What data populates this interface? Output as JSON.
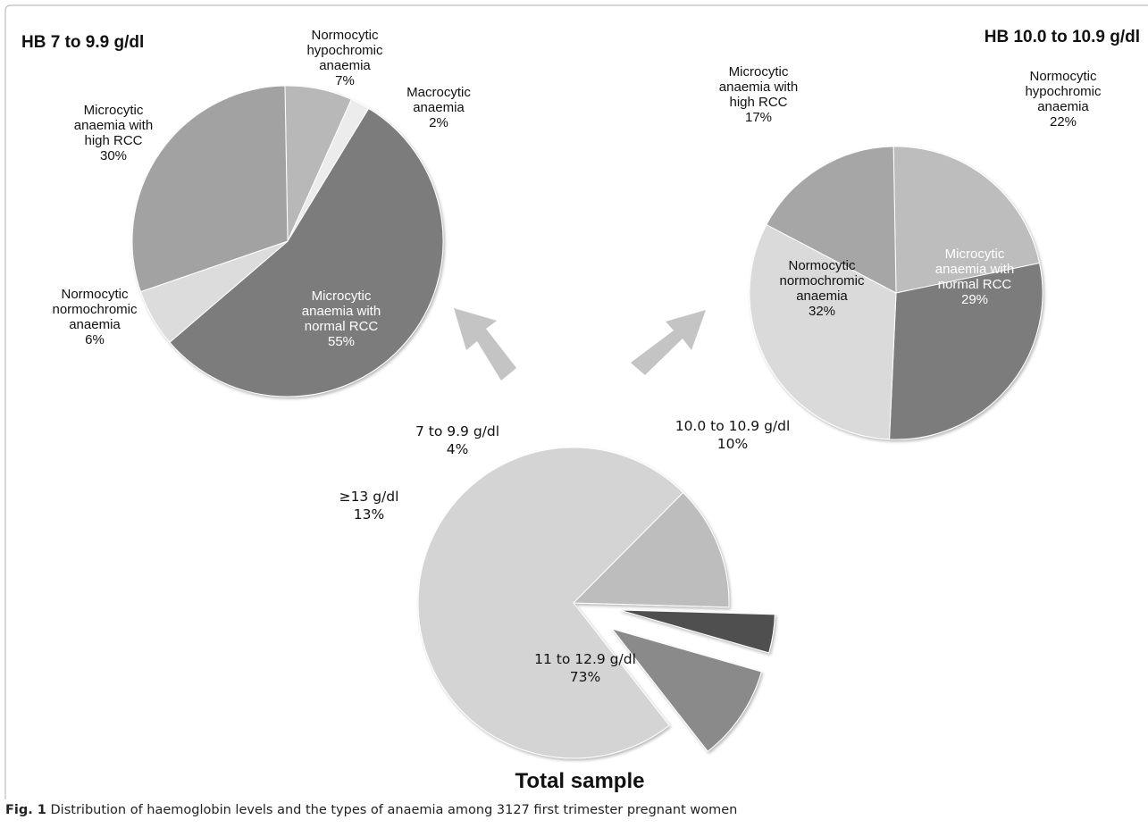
{
  "caption": {
    "label": "Fig. 1",
    "text": "Distribution of haemoglobin levels and the types of anaemia among 3127 first trimester pregnant women"
  },
  "chart_data": [
    {
      "type": "pie",
      "title": "HB 7 to 9.9 g/dl",
      "slices": [
        {
          "lines": [
            "Normocytic",
            "hypochromic",
            "anaemia",
            "7%"
          ],
          "value": 7,
          "color": "#b8b8b8",
          "label_inside": false
        },
        {
          "lines": [
            "Macrocytic",
            "anaemia",
            "2%"
          ],
          "value": 2,
          "color": "#ececec",
          "label_inside": false
        },
        {
          "lines": [
            "Microcytic",
            "anaemia with",
            "normal RCC",
            "55%"
          ],
          "value": 55,
          "color": "#7c7c7c",
          "label_inside": true
        },
        {
          "lines": [
            "Normocytic",
            "normochromic",
            "anaemia",
            "6%"
          ],
          "value": 6,
          "color": "#dcdcdc",
          "label_inside": false
        },
        {
          "lines": [
            "Microcytic",
            "anaemia with",
            "high RCC",
            "30%"
          ],
          "value": 30,
          "color": "#a2a2a2",
          "label_inside": false
        }
      ]
    },
    {
      "type": "pie",
      "title": "HB 10.0 to 10.9 g/dl",
      "slices": [
        {
          "lines": [
            "Normocytic",
            "hypochromic",
            "anaemia",
            "22%"
          ],
          "value": 22,
          "color": "#bdbdbd",
          "label_inside": false
        },
        {
          "lines": [
            "Microcytic",
            "anaemia with",
            "normal RCC",
            "29%"
          ],
          "value": 29,
          "color": "#7c7c7c",
          "label_inside": true
        },
        {
          "lines": [
            "Normocytic",
            "normochromic",
            "anaemia",
            "32%"
          ],
          "value": 32,
          "color": "#dadada",
          "label_inside": true
        },
        {
          "lines": [
            "Microcytic",
            "anaemia with",
            "high RCC",
            "17%"
          ],
          "value": 17,
          "color": "#a6a6a6",
          "label_inside": false
        }
      ]
    },
    {
      "type": "pie",
      "title": "Total sample",
      "slices": [
        {
          "lines": [
            "10.0 to 10.9 g/dl",
            "10%"
          ],
          "value": 10,
          "color": "#8a8a8a",
          "label_inside": false,
          "exploded": true
        },
        {
          "lines": [
            "11 to 12.9 g/dl",
            "73%"
          ],
          "value": 73,
          "color": "#d4d4d4",
          "label_inside": true,
          "exploded": false
        },
        {
          "lines": [
            "≥13 g/dl",
            "13%"
          ],
          "value": 13,
          "color": "#bdbdbd",
          "label_inside": false,
          "exploded": false
        },
        {
          "lines": [
            "7 to 9.9 g/dl",
            "4%"
          ],
          "value": 4,
          "color": "#505050",
          "label_inside": false,
          "exploded": true
        }
      ]
    }
  ]
}
